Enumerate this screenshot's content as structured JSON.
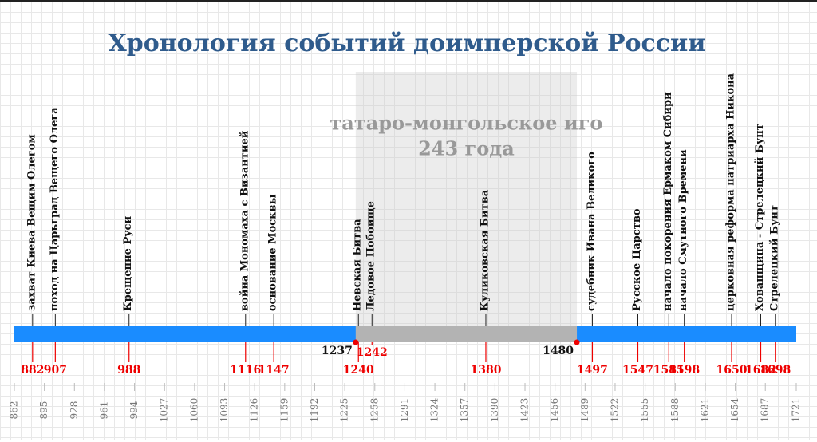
{
  "title": "Хронология событий доимперской России",
  "yoke": {
    "start": 1237,
    "end": 1480,
    "title": "татаро-монгольское иго",
    "duration": "243 года"
  },
  "events": [
    {
      "year": 882,
      "label": "захват Киева Вещим Олегом"
    },
    {
      "year": 907,
      "label": "поход на Царьград Вещего Олега"
    },
    {
      "year": 988,
      "label": "Крещение Руси"
    },
    {
      "year": 1116,
      "label": "война Мономаха с Византией"
    },
    {
      "year": 1147,
      "label": "основание Москвы"
    },
    {
      "year": 1240,
      "label": "Невская Битва"
    },
    {
      "year": 1242,
      "label": "Ледовое Побоище"
    },
    {
      "year": 1380,
      "label": "Куликовская Битва"
    },
    {
      "year": 1497,
      "label": "судебник Ивана Великого"
    },
    {
      "year": 1547,
      "label": "Русское Царство"
    },
    {
      "year": 1581,
      "label": "начало покорения Ермаком Сибири"
    },
    {
      "year": 1598,
      "label": "начало Смутного Времени"
    },
    {
      "year": 1650,
      "label": "церковная реформа патриарха Никона"
    },
    {
      "year": 1682,
      "label": "Хованщина - Стрелецкий Бунт"
    },
    {
      "year": 1698,
      "label": "Стрелецкий Бунт"
    }
  ],
  "axis_ticks": [
    862,
    895,
    928,
    961,
    994,
    1027,
    1060,
    1093,
    1126,
    1159,
    1192,
    1225,
    1258,
    1291,
    1324,
    1357,
    1390,
    1423,
    1456,
    1489,
    1522,
    1555,
    1588,
    1621,
    1654,
    1687,
    1721
  ]
}
